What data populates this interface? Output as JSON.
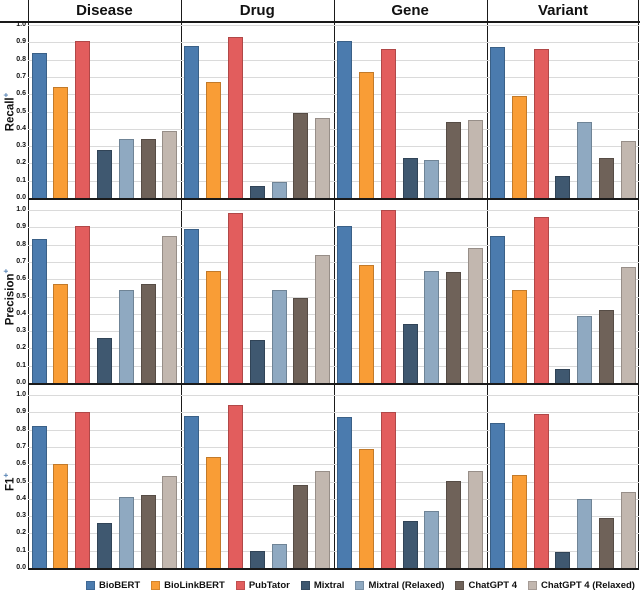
{
  "header": {
    "columns": [
      "Disease",
      "Drug",
      "Gene",
      "Variant"
    ]
  },
  "rows": [
    {
      "label": "Recall",
      "suffix": "+"
    },
    {
      "label": "Precision",
      "suffix": "+"
    },
    {
      "label": "F1",
      "suffix": "+"
    }
  ],
  "y_axis": {
    "ticks": [
      "1.0",
      "0.9",
      "0.8",
      "0.7",
      "0.6",
      "0.5",
      "0.4",
      "0.3",
      "0.2",
      "0.1",
      "0.0"
    ]
  },
  "legend": [
    {
      "name": "BioBERT",
      "color": "#4b7bae"
    },
    {
      "name": "BioLinkBERT",
      "color": "#f99d36"
    },
    {
      "name": "PubTator",
      "color": "#e25d5d"
    },
    {
      "name": "Mixtral",
      "color": "#3f5870"
    },
    {
      "name": "Mixtral (Relaxed)",
      "color": "#8fa9c1"
    },
    {
      "name": "ChatGPT 4",
      "color": "#6f6259"
    },
    {
      "name": "ChatGPT 4 (Relaxed)",
      "color": "#c2b7af"
    }
  ],
  "chart_data": {
    "type": "bar",
    "metrics": [
      "Recall",
      "Precision",
      "F1"
    ],
    "categories": [
      "Disease",
      "Drug",
      "Gene",
      "Variant"
    ],
    "series": [
      "BioBERT",
      "BioLinkBERT",
      "PubTator",
      "Mixtral",
      "Mixtral (Relaxed)",
      "ChatGPT 4",
      "ChatGPT 4 (Relaxed)"
    ],
    "ylim": [
      0,
      1
    ],
    "tick_step": 0.1,
    "grid": true,
    "legend_position": "bottom",
    "values": {
      "Recall": {
        "Disease": [
          0.84,
          0.64,
          0.91,
          0.28,
          0.34,
          0.34,
          0.39
        ],
        "Drug": [
          0.88,
          0.67,
          0.93,
          0.07,
          0.09,
          0.49,
          0.46
        ],
        "Gene": [
          0.91,
          0.73,
          0.86,
          0.23,
          0.22,
          0.44,
          0.45
        ],
        "Variant": [
          0.87,
          0.59,
          0.86,
          0.13,
          0.44,
          0.23,
          0.33
        ]
      },
      "Precision": {
        "Disease": [
          0.83,
          0.57,
          0.91,
          0.26,
          0.54,
          0.57,
          0.85
        ],
        "Drug": [
          0.89,
          0.65,
          0.98,
          0.25,
          0.54,
          0.49,
          0.74
        ],
        "Gene": [
          0.91,
          0.68,
          1.0,
          0.34,
          0.65,
          0.64,
          0.78
        ],
        "Variant": [
          0.85,
          0.54,
          0.96,
          0.08,
          0.39,
          0.42,
          0.67
        ]
      },
      "F1": {
        "Disease": [
          0.82,
          0.6,
          0.9,
          0.26,
          0.41,
          0.42,
          0.53
        ],
        "Drug": [
          0.88,
          0.64,
          0.94,
          0.1,
          0.14,
          0.48,
          0.56
        ],
        "Gene": [
          0.87,
          0.69,
          0.9,
          0.27,
          0.33,
          0.5,
          0.56
        ],
        "Variant": [
          0.84,
          0.54,
          0.89,
          0.09,
          0.4,
          0.29,
          0.44
        ]
      }
    }
  }
}
